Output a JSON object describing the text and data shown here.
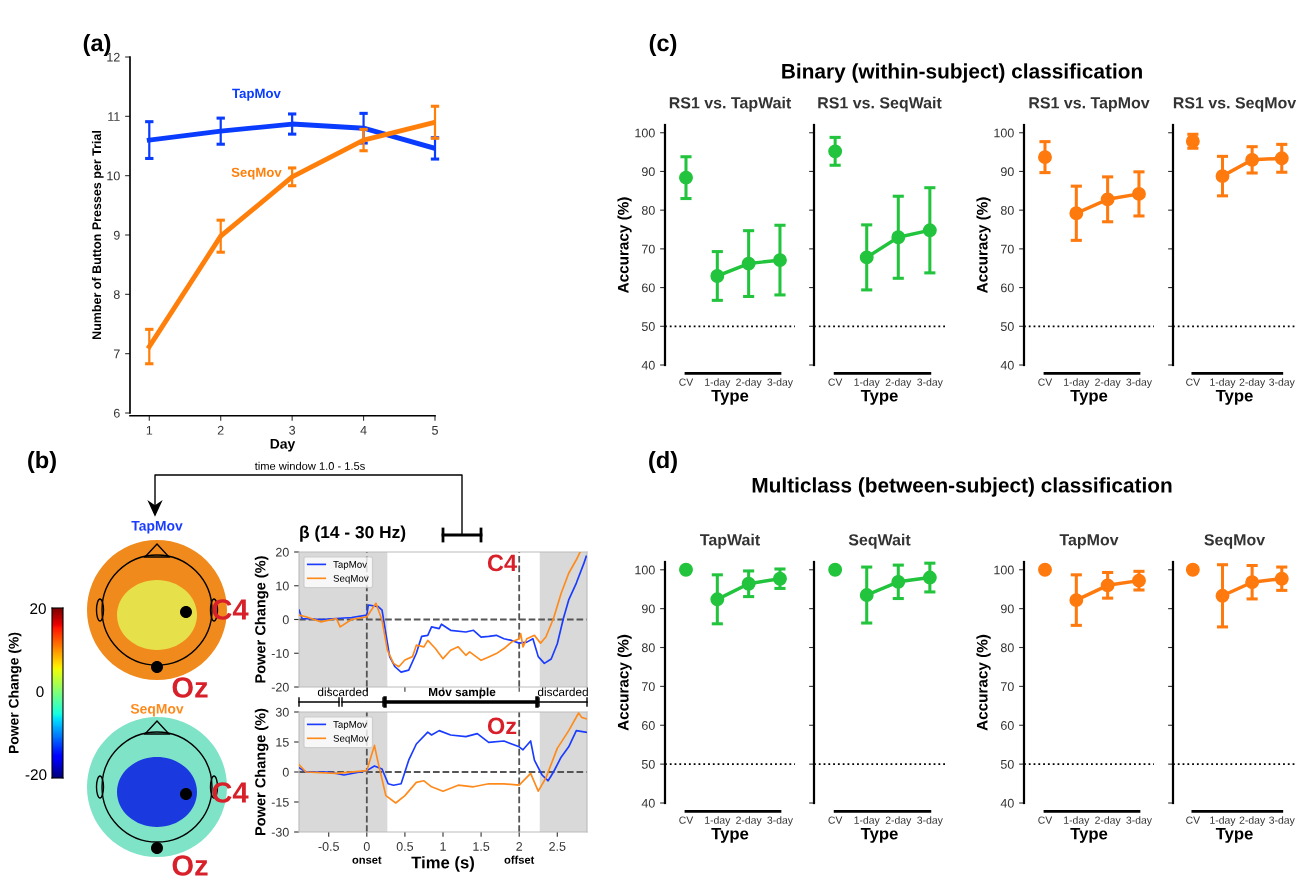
{
  "chart_data": [
    {
      "type": "line",
      "x": [
        1,
        2,
        3,
        4,
        5
      ],
      "xlim": [
        0.73,
        5
      ],
      "xticks": [
        1,
        2,
        3,
        4,
        5
      ],
      "ylim": [
        6,
        12
      ],
      "yticks": [
        6,
        7,
        8,
        9,
        10,
        11,
        12
      ],
      "xlabel": "Day",
      "ylabel": "Number of Button Presses per Trial",
      "annotations": [
        "(a)"
      ],
      "series": [
        {
          "name": "TapMov",
          "color": "#0a3cff",
          "values": [
            10.6,
            10.75,
            10.87,
            10.8,
            10.46
          ],
          "errors": [
            0.31,
            0.22,
            0.17,
            0.25,
            0.18
          ]
        },
        {
          "name": "SeqMov",
          "color": "#ff7f0a",
          "values": [
            7.12,
            8.98,
            9.98,
            10.6,
            10.9
          ],
          "errors": [
            0.29,
            0.27,
            0.15,
            0.18,
            0.27
          ]
        }
      ]
    },
    {
      "type": "other",
      "clabel": "Power Change (%)",
      "annotations": [
        "(b)",
        "TapMov",
        "SeqMov",
        "C4",
        "Oz",
        "C4",
        "Oz",
        "20",
        "0",
        "-20"
      ]
    },
    {
      "type": "line",
      "title": "β (14 - 30 Hz)",
      "xlim": [
        -0.89,
        2.89
      ],
      "xticks": [
        -0.5,
        0,
        0.5,
        1,
        1.5,
        2,
        2.5
      ],
      "ylim": [
        -20,
        20
      ],
      "yticks": [
        -20,
        -10,
        0,
        10,
        20
      ],
      "ylabel": "Power Change (%)",
      "tick_labels": "y",
      "legend": "top left",
      "bands": [
        {
          "axis": "x",
          "from": -0.89,
          "to": 0.27,
          "color": "#d9d9d9"
        },
        {
          "axis": "x",
          "from": 2.27,
          "to": 2.89,
          "color": "#d9d9d9"
        }
      ],
      "ref_lines": [
        {
          "axis": "x",
          "value": 0,
          "color": "#555555",
          "line_style": "dashed"
        },
        {
          "axis": "x",
          "value": 2,
          "color": "#555555",
          "line_style": "dashed"
        },
        {
          "axis": "y",
          "value": 0,
          "color": "#555555",
          "line_style": "dashed"
        }
      ],
      "annotations": [
        "C4",
        "time window 1.0 - 1.5s",
        "discarded",
        "Mov sample",
        "discarded"
      ],
      "series": [
        {
          "name": "TapMov",
          "color": "#1a3cff",
          "x": [
            -0.89,
            -0.85,
            -0.6,
            -0.4,
            -0.2,
            0,
            0.02,
            0.15,
            0.2,
            0.25,
            0.3,
            0.37,
            0.45,
            0.55,
            0.65,
            0.72,
            0.8,
            0.85,
            0.95,
            0.98,
            1.1,
            1.3,
            1.4,
            1.5,
            1.6,
            1.7,
            1.8,
            1.9,
            2.0,
            2.1,
            2.18,
            2.25,
            2.33,
            2.42,
            2.5,
            2.58,
            2.65,
            2.75,
            2.85,
            2.88
          ],
          "values": [
            2.8,
            0.3,
            0,
            0.3,
            0.6,
            1.3,
            4.3,
            3.8,
            2.8,
            -4.2,
            -11,
            -14,
            -15.6,
            -15,
            -10,
            -5,
            -4.7,
            -2.2,
            -2.7,
            -1.4,
            -3.2,
            -3.7,
            -3.2,
            -5.2,
            -5,
            -4.7,
            -5.7,
            -6.2,
            -7,
            -6.7,
            -5.7,
            -11,
            -13,
            -11.7,
            -7.2,
            0.3,
            5.8,
            10.8,
            16.7,
            18.7
          ]
        },
        {
          "name": "SeqMov",
          "color": "#ff8a1c",
          "x": [
            -0.89,
            -0.8,
            -0.6,
            -0.4,
            -0.35,
            -0.2,
            0,
            0.12,
            0.2,
            0.27,
            0.35,
            0.42,
            0.5,
            0.6,
            0.65,
            0.75,
            0.8,
            0.9,
            1.0,
            1.1,
            1.2,
            1.3,
            1.35,
            1.5,
            1.6,
            1.7,
            1.8,
            1.9,
            2.0,
            2.02,
            2.05,
            2.1,
            2.2,
            2.28,
            2.35,
            2.45,
            2.55,
            2.65,
            2.75,
            2.8
          ],
          "values": [
            1.3,
            0.8,
            -0.7,
            0.3,
            -2.2,
            0,
            0.8,
            4.8,
            -0.2,
            -9.1,
            -13,
            -14,
            -12,
            -11,
            -7.6,
            -8.1,
            -6.2,
            -8.6,
            -11.6,
            -9.1,
            -8.1,
            -10.6,
            -9.6,
            -12.1,
            -11.1,
            -10.1,
            -8.6,
            -6.7,
            -5.7,
            -4.2,
            -8.1,
            -5.7,
            -4.7,
            -7,
            -5.2,
            0.3,
            7.7,
            13.7,
            17.7,
            20
          ]
        }
      ]
    },
    {
      "type": "line",
      "xlim": [
        -0.89,
        2.89
      ],
      "xticks": [
        -0.5,
        0,
        0.5,
        1,
        1.5,
        2,
        2.5
      ],
      "ylim": [
        -30,
        30
      ],
      "yticks": [
        -30,
        -15,
        0,
        15,
        30
      ],
      "xlabel": "Time (s)",
      "ylabel": "Power Change (%)",
      "legend": "top left",
      "bands": [
        {
          "axis": "x",
          "from": -0.89,
          "to": 0.27,
          "color": "#d9d9d9"
        },
        {
          "axis": "x",
          "from": 2.27,
          "to": 2.89,
          "color": "#d9d9d9"
        }
      ],
      "ref_lines": [
        {
          "axis": "x",
          "value": 0,
          "color": "#555555",
          "line_style": "dashed"
        },
        {
          "axis": "x",
          "value": 2,
          "color": "#555555",
          "line_style": "dashed"
        },
        {
          "axis": "y",
          "value": 0,
          "color": "#555555",
          "line_style": "dashed"
        }
      ],
      "annotations": [
        "Oz",
        {
          "text": "onset",
          "x": 0,
          "y": -30
        },
        {
          "text": "offset",
          "x": 2,
          "y": -30
        }
      ],
      "series": [
        {
          "name": "TapMov",
          "color": "#1a3cff",
          "x": [
            -0.89,
            -0.8,
            -0.5,
            -0.3,
            0,
            0.1,
            0.2,
            0.28,
            0.35,
            0.45,
            0.55,
            0.65,
            0.8,
            0.85,
            0.95,
            1.1,
            1.3,
            1.45,
            1.6,
            1.8,
            2.0,
            2.05,
            2.15,
            2.2,
            2.3,
            2.38,
            2.45,
            2.55,
            2.65,
            2.75,
            2.88
          ],
          "values": [
            2.2,
            0,
            0,
            -1.5,
            0.7,
            3,
            1.5,
            -5.9,
            -6.6,
            -5.9,
            5.9,
            14,
            19.9,
            18.5,
            20.7,
            18.5,
            17.7,
            19.2,
            14.8,
            15.5,
            12.6,
            11.1,
            15.5,
            5.9,
            -1.5,
            -4.4,
            0,
            7.4,
            12.6,
            20.7,
            19.9
          ]
        },
        {
          "name": "SeqMov",
          "color": "#ff8a1c",
          "x": [
            -0.89,
            -0.8,
            -0.4,
            0,
            0.1,
            0.15,
            0.25,
            0.38,
            0.5,
            0.65,
            0.75,
            0.85,
            1.0,
            1.2,
            1.4,
            1.6,
            1.8,
            2.0,
            2.15,
            2.25,
            2.35,
            2.5,
            2.65,
            2.78,
            2.82,
            2.88
          ],
          "values": [
            3.7,
            0,
            -0.7,
            0.7,
            13.3,
            4.4,
            -11.8,
            -15.5,
            -11.8,
            -5.2,
            -4.4,
            -7.4,
            -9.6,
            -6.6,
            -7.4,
            -5.9,
            -5.9,
            -6.6,
            -0.7,
            -9.6,
            -3,
            11.8,
            20.7,
            29.5,
            27.3,
            26.6
          ]
        }
      ]
    },
    {
      "type": "line",
      "title": "RS1 vs. TapWait",
      "categories": [
        "CV",
        "1-day",
        "2-day",
        "3-day"
      ],
      "ylim": [
        40,
        102
      ],
      "yticks": [
        40,
        50,
        60,
        70,
        80,
        90,
        100
      ],
      "xlabel": "Type",
      "ylabel": "Accuracy (%)",
      "marker": "circle",
      "ref_lines": [
        {
          "axis": "y",
          "value": 50,
          "color": "#000000",
          "line_style": "dotted"
        }
      ],
      "annotations": [
        "(c)",
        "Binary (within-subject) classification"
      ],
      "series": [
        {
          "type": "scatter",
          "color": "#22c43d",
          "values": [
            88.4,
            null,
            null,
            null
          ],
          "errors": [
            5.4,
            null,
            null,
            null
          ]
        },
        {
          "color": "#22c43d",
          "values": [
            null,
            63.0,
            66.2,
            67.1
          ],
          "errors": [
            null,
            6.3,
            8.5,
            9.0
          ]
        }
      ]
    },
    {
      "type": "line",
      "title": "RS1 vs. SeqWait",
      "categories": [
        "CV",
        "1-day",
        "2-day",
        "3-day"
      ],
      "ylim": [
        40,
        102
      ],
      "yticks": [
        40,
        50,
        60,
        70,
        80,
        90,
        100
      ],
      "xlabel": "Type",
      "tick_labels": "x",
      "marker": "circle",
      "ref_lines": [
        {
          "axis": "y",
          "value": 50,
          "color": "#000000",
          "line_style": "dotted"
        }
      ],
      "series": [
        {
          "type": "scatter",
          "color": "#22c43d",
          "values": [
            95.2,
            null,
            null,
            null
          ],
          "errors": [
            3.6,
            null,
            null,
            null
          ]
        },
        {
          "color": "#22c43d",
          "values": [
            null,
            67.8,
            73.0,
            74.8
          ],
          "errors": [
            null,
            8.4,
            10.6,
            11.0
          ]
        }
      ]
    },
    {
      "type": "line",
      "title": "RS1 vs. TapMov",
      "categories": [
        "CV",
        "1-day",
        "2-day",
        "3-day"
      ],
      "ylim": [
        40,
        102
      ],
      "yticks": [
        40,
        50,
        60,
        70,
        80,
        90,
        100
      ],
      "xlabel": "Type",
      "ylabel": "Accuracy (%)",
      "marker": "circle",
      "ref_lines": [
        {
          "axis": "y",
          "value": 50,
          "color": "#000000",
          "line_style": "dotted"
        }
      ],
      "series": [
        {
          "type": "scatter",
          "color": "#ff7a0e",
          "values": [
            93.7,
            null,
            null,
            null
          ],
          "errors": [
            4.0,
            null,
            null,
            null
          ]
        },
        {
          "color": "#ff7a0e",
          "values": [
            null,
            79.2,
            82.8,
            84.2
          ],
          "errors": [
            null,
            7.0,
            5.8,
            5.7
          ]
        }
      ]
    },
    {
      "type": "line",
      "title": "RS1 vs. SeqMov",
      "categories": [
        "CV",
        "1-day",
        "2-day",
        "3-day"
      ],
      "ylim": [
        40,
        102
      ],
      "yticks": [
        40,
        50,
        60,
        70,
        80,
        90,
        100
      ],
      "xlabel": "Type",
      "tick_labels": "x",
      "marker": "circle",
      "ref_lines": [
        {
          "axis": "y",
          "value": 50,
          "color": "#000000",
          "line_style": "dotted"
        }
      ],
      "series": [
        {
          "type": "scatter",
          "color": "#ff7a0e",
          "values": [
            97.8,
            null,
            null,
            null
          ],
          "errors": [
            1.8,
            null,
            null,
            null
          ]
        },
        {
          "color": "#ff7a0e",
          "values": [
            null,
            88.8,
            93.0,
            93.4
          ],
          "errors": [
            null,
            5.1,
            3.4,
            3.6
          ]
        }
      ]
    },
    {
      "type": "line",
      "title": "TapWait",
      "categories": [
        "CV",
        "1-day",
        "2-day",
        "3-day"
      ],
      "ylim": [
        40,
        102
      ],
      "yticks": [
        40,
        50,
        60,
        70,
        80,
        90,
        100
      ],
      "xlabel": "Type",
      "ylabel": "Accuracy (%)",
      "marker": "circle",
      "ref_lines": [
        {
          "axis": "y",
          "value": 50,
          "color": "#000000",
          "line_style": "dotted"
        }
      ],
      "annotations": [
        "(d)",
        "Multiclass (between-subject) classification"
      ],
      "series": [
        {
          "type": "scatter",
          "color": "#22c43d",
          "values": [
            100,
            null,
            null,
            null
          ]
        },
        {
          "color": "#22c43d",
          "values": [
            null,
            92.4,
            96.4,
            97.7
          ],
          "errors": [
            null,
            6.3,
            3.3,
            2.5
          ]
        }
      ]
    },
    {
      "type": "line",
      "title": "SeqWait",
      "categories": [
        "CV",
        "1-day",
        "2-day",
        "3-day"
      ],
      "ylim": [
        40,
        102
      ],
      "yticks": [
        40,
        50,
        60,
        70,
        80,
        90,
        100
      ],
      "xlabel": "Type",
      "tick_labels": "x",
      "marker": "circle",
      "ref_lines": [
        {
          "axis": "y",
          "value": 50,
          "color": "#000000",
          "line_style": "dotted"
        }
      ],
      "series": [
        {
          "type": "scatter",
          "color": "#22c43d",
          "values": [
            100,
            null,
            null,
            null
          ]
        },
        {
          "color": "#22c43d",
          "values": [
            null,
            93.5,
            96.9,
            98.0
          ],
          "errors": [
            null,
            7.2,
            4.3,
            3.7
          ]
        }
      ]
    },
    {
      "type": "line",
      "title": "TapMov",
      "categories": [
        "CV",
        "1-day",
        "2-day",
        "3-day"
      ],
      "ylim": [
        40,
        102
      ],
      "yticks": [
        40,
        50,
        60,
        70,
        80,
        90,
        100
      ],
      "xlabel": "Type",
      "ylabel": "Accuracy (%)",
      "marker": "circle",
      "ref_lines": [
        {
          "axis": "y",
          "value": 50,
          "color": "#000000",
          "line_style": "dotted"
        }
      ],
      "series": [
        {
          "type": "scatter",
          "color": "#ff7a0e",
          "values": [
            100,
            null,
            null,
            null
          ]
        },
        {
          "color": "#ff7a0e",
          "values": [
            null,
            92.2,
            96.0,
            97.2
          ],
          "errors": [
            null,
            6.5,
            3.3,
            2.4
          ]
        }
      ]
    },
    {
      "type": "line",
      "title": "SeqMov",
      "categories": [
        "CV",
        "1-day",
        "2-day",
        "3-day"
      ],
      "ylim": [
        40,
        102
      ],
      "yticks": [
        40,
        50,
        60,
        70,
        80,
        90,
        100
      ],
      "xlabel": "Type",
      "tick_labels": "x",
      "marker": "circle",
      "ref_lines": [
        {
          "axis": "y",
          "value": 50,
          "color": "#000000",
          "line_style": "dotted"
        }
      ],
      "series": [
        {
          "type": "scatter",
          "color": "#ff7a0e",
          "values": [
            100,
            null,
            null,
            null
          ]
        },
        {
          "color": "#ff7a0e",
          "values": [
            null,
            93.3,
            96.8,
            97.7
          ],
          "errors": [
            null,
            8.0,
            4.3,
            3.0
          ]
        }
      ]
    }
  ]
}
